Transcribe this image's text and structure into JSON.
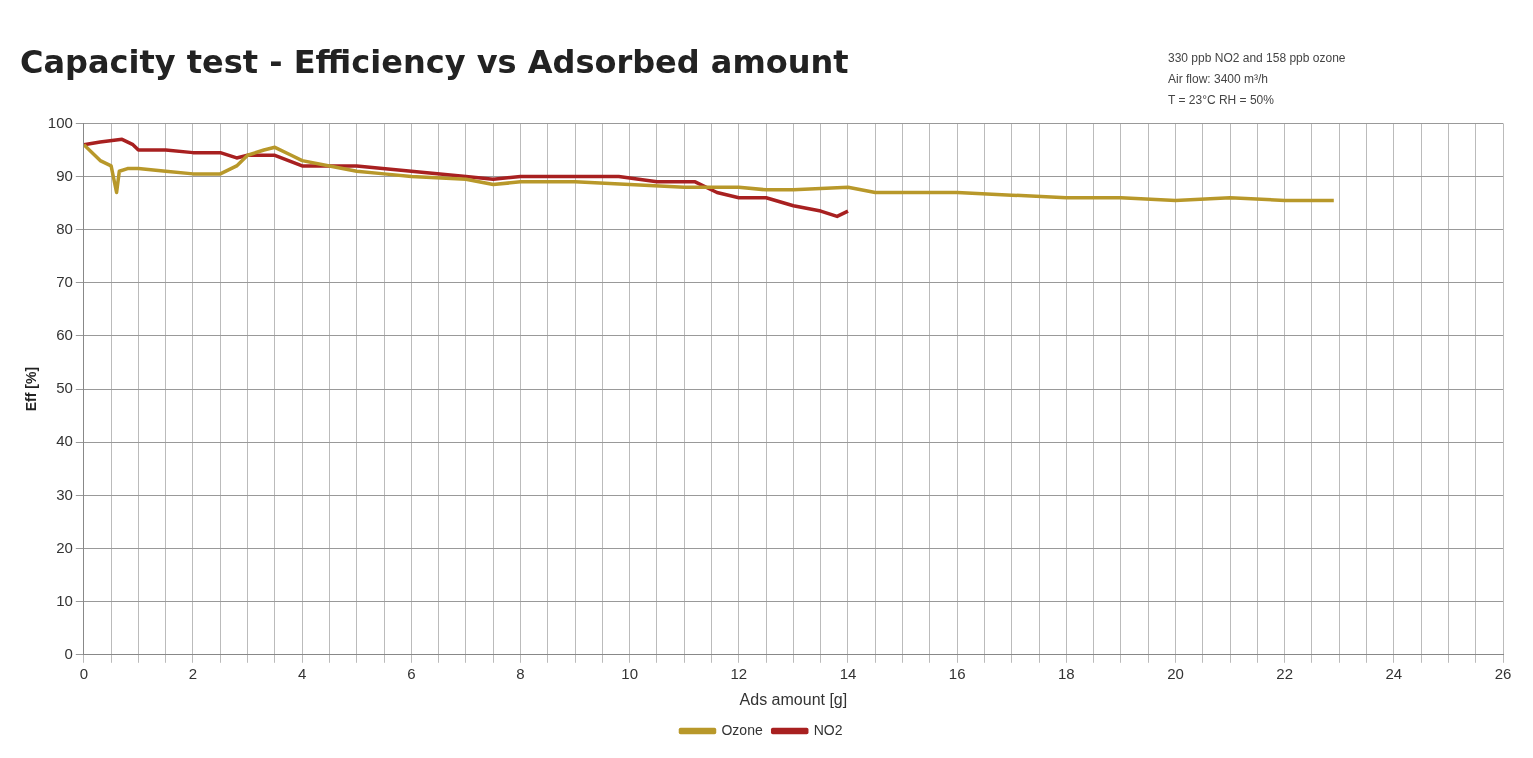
{
  "chart_data": {
    "type": "line",
    "title": "Capacity test - Efficiency vs Adsorbed amount",
    "xlabel": "Ads amount [g]",
    "ylabel": "Eff [%]",
    "annotations": [
      "330 ppb NO2 and 158 ppb ozone",
      "Air flow: 3400 m³/h",
      "T = 23°C RH = 50%"
    ],
    "xlim": [
      0,
      26
    ],
    "xticks": [
      0,
      {
        "value": 0.5,
        "label": null
      },
      2,
      {
        "value": 1,
        "label": null
      },
      {
        "value": 1.5,
        "label": null
      },
      {
        "value": 2.5,
        "label": null
      },
      {
        "value": 3,
        "label": null
      },
      {
        "value": 3.5,
        "label": null
      },
      4,
      {
        "value": 4.5,
        "label": null
      },
      {
        "value": 5,
        "label": null
      },
      {
        "value": 5.5,
        "label": null
      },
      6,
      {
        "value": 6.5,
        "label": null
      },
      {
        "value": 7,
        "label": null
      },
      {
        "value": 7.5,
        "label": null
      },
      8,
      {
        "value": 8.5,
        "label": null
      },
      {
        "value": 9,
        "label": null
      },
      {
        "value": 9.5,
        "label": null
      },
      10,
      {
        "value": 10.5,
        "label": null
      },
      {
        "value": 11,
        "label": null
      },
      {
        "value": 11.5,
        "label": null
      },
      12,
      {
        "value": 12.5,
        "label": null
      },
      {
        "value": 13,
        "label": null
      },
      {
        "value": 13.5,
        "label": null
      },
      14,
      {
        "value": 14.5,
        "label": null
      },
      {
        "value": 15,
        "label": null
      },
      {
        "value": 15.5,
        "label": null
      },
      16,
      {
        "value": 16.5,
        "label": null
      },
      {
        "value": 17,
        "label": null
      },
      {
        "value": 17.5,
        "label": null
      },
      18,
      {
        "value": 18.5,
        "label": null
      },
      {
        "value": 19,
        "label": null
      },
      {
        "value": 19.5,
        "label": null
      },
      20,
      {
        "value": 20.5,
        "label": null
      },
      {
        "value": 21,
        "label": null
      },
      {
        "value": 21.5,
        "label": null
      },
      22,
      {
        "value": 22.5,
        "label": null
      },
      {
        "value": 23,
        "label": null
      },
      {
        "value": 23.5,
        "label": null
      },
      24,
      {
        "value": 24.5,
        "label": null
      },
      {
        "value": 25,
        "label": null
      },
      {
        "value": 25.5,
        "label": null
      },
      26
    ],
    "ylim": [
      0,
      100
    ],
    "yticks": [
      0,
      10,
      20,
      30,
      40,
      50,
      60,
      70,
      80,
      90,
      100
    ],
    "grid": true,
    "legend": "bottom",
    "marker": "none",
    "line_style": "solid",
    "series": [
      {
        "name": "Ozone",
        "color": "#b8982a",
        "x": [
          0,
          0.3,
          0.5,
          0.6,
          0.65,
          0.8,
          1,
          1.5,
          2,
          2.5,
          2.8,
          3,
          3.3,
          3.5,
          3.8,
          4,
          4.5,
          5,
          5.5,
          6,
          7,
          7.5,
          8,
          9,
          10,
          11,
          12,
          12.5,
          13,
          14,
          14.5,
          15,
          16,
          17,
          18,
          19,
          20,
          21,
          22,
          22.9
        ],
        "values": [
          96,
          93,
          92,
          87,
          91,
          91.5,
          91.5,
          91,
          90.5,
          90.5,
          92,
          94,
          95,
          95.5,
          94,
          93,
          92,
          91,
          90.5,
          90,
          89.5,
          88.5,
          89,
          89,
          88.5,
          88,
          88,
          87.5,
          87.5,
          88,
          87,
          87,
          87,
          86.5,
          86,
          86,
          85.5,
          86,
          85.5,
          85.5
        ]
      },
      {
        "name": "NO2",
        "color": "#a82020",
        "x": [
          0,
          0.3,
          0.7,
          0.9,
          1,
          1.5,
          2,
          2.5,
          2.8,
          3,
          3.5,
          4,
          4.5,
          5,
          6,
          7,
          7.5,
          8,
          9,
          9.8,
          10.5,
          11.2,
          11.6,
          12,
          12.5,
          13,
          13.5,
          13.8,
          14
        ],
        "values": [
          96,
          96.5,
          97,
          96,
          95,
          95,
          94.5,
          94.5,
          93.5,
          94,
          94,
          92,
          92,
          92,
          91,
          90,
          89.5,
          90,
          90,
          90,
          89,
          89,
          87,
          86,
          86,
          84.5,
          83.5,
          82.5,
          83.5
        ]
      }
    ]
  }
}
